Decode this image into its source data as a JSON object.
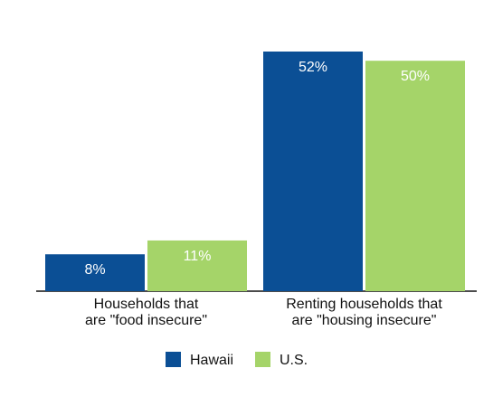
{
  "chart_data": {
    "type": "bar",
    "categories": [
      "Households that\nare \"food insecure\"",
      "Renting households that\nare \"housing insecure\""
    ],
    "series": [
      {
        "name": "Hawaii",
        "color": "#0b4f95",
        "values": [
          8,
          52
        ],
        "value_labels": [
          "8%",
          "52%"
        ]
      },
      {
        "name": "U.S.",
        "color": "#a5d469",
        "values": [
          11,
          50
        ],
        "value_labels": [
          "11%",
          "50%"
        ]
      }
    ],
    "ylim": [
      0,
      52
    ]
  }
}
